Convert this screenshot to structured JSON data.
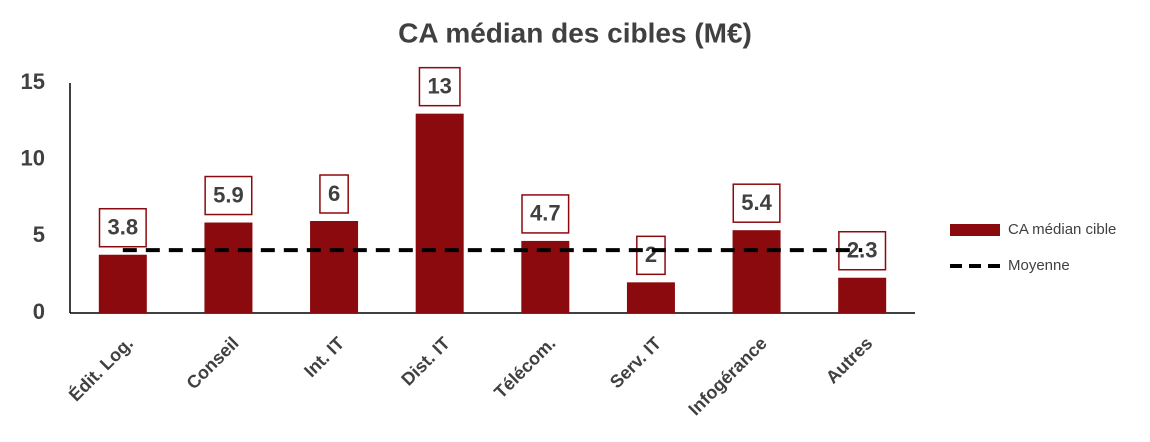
{
  "chart_data": {
    "type": "bar",
    "title": "CA médian des cibles (M€)",
    "categories": [
      "Édit. Log.",
      "Conseil",
      "Int. IT",
      "Dist. IT",
      "Télécom.",
      "Serv. IT",
      "Infogérance",
      "Autres"
    ],
    "series": [
      {
        "name": "CA médian cible",
        "type": "bar",
        "color": "#8b0a0e",
        "values": [
          3.8,
          5.9,
          6,
          13,
          4.7,
          2,
          5.4,
          2.3
        ]
      },
      {
        "name": "Moyenne",
        "type": "line",
        "color": "#000000",
        "dashed": true,
        "values": [
          4.1,
          4.1,
          4.1,
          4.1,
          4.1,
          4.1,
          4.1,
          4.1
        ]
      }
    ],
    "ylim": [
      0,
      15
    ],
    "yticks": [
      0,
      5,
      10,
      15
    ],
    "grid": false,
    "data_labels": true,
    "legend": "right"
  }
}
